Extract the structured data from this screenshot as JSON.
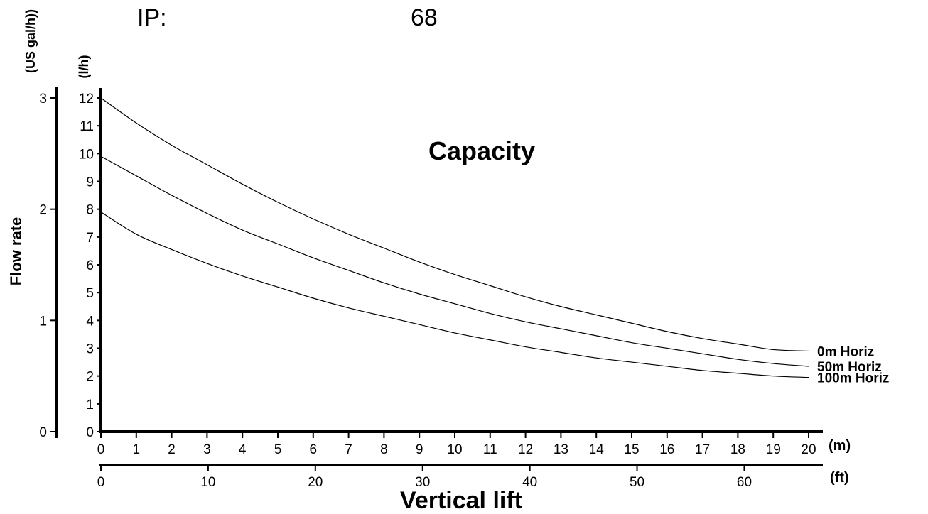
{
  "header": {
    "label": "IP:",
    "value": "68"
  },
  "chart_data": {
    "type": "line",
    "title": "Capacity",
    "xlabel": "Vertical lift",
    "ylabel": "Flow rate",
    "x_unit_primary": "(m)",
    "x_unit_secondary": "(ft)",
    "y_unit_primary": "(l/h)",
    "y_unit_secondary": "(US gal/h))",
    "xlim": [
      0,
      20
    ],
    "ylim": [
      0,
      12
    ],
    "ylim_secondary": [
      0,
      3
    ],
    "xlim_secondary": [
      0,
      66
    ],
    "x_ticks": [
      "0",
      "1",
      "2",
      "3",
      "4",
      "5",
      "6",
      "7",
      "8",
      "9",
      "10",
      "11",
      "12",
      "13",
      "14",
      "15",
      "16",
      "17",
      "18",
      "19",
      "20"
    ],
    "x_ticks_secondary": [
      "0",
      "10",
      "20",
      "30",
      "40",
      "50",
      "60"
    ],
    "y_ticks": [
      "0",
      "1",
      "2",
      "3",
      "4",
      "5",
      "6",
      "7",
      "8",
      "9",
      "10",
      "11",
      "12"
    ],
    "y_ticks_secondary": [
      "0",
      "1",
      "2",
      "3"
    ],
    "series": [
      {
        "name": "0m Horiz",
        "x": [
          0,
          1,
          2,
          3,
          4,
          5,
          6,
          7,
          8,
          9,
          10,
          11,
          12,
          13,
          14,
          15,
          16,
          17,
          18,
          19,
          20
        ],
        "values": [
          12.0,
          11.1,
          10.3,
          9.6,
          8.9,
          8.25,
          7.65,
          7.1,
          6.6,
          6.1,
          5.65,
          5.25,
          4.85,
          4.5,
          4.2,
          3.9,
          3.6,
          3.35,
          3.15,
          2.95,
          2.9
        ]
      },
      {
        "name": "50m Horiz",
        "x": [
          0,
          1,
          2,
          3,
          4,
          5,
          6,
          7,
          8,
          9,
          10,
          11,
          12,
          13,
          14,
          15,
          16,
          17,
          18,
          19,
          20
        ],
        "values": [
          9.9,
          9.2,
          8.5,
          7.85,
          7.25,
          6.75,
          6.25,
          5.8,
          5.35,
          4.95,
          4.6,
          4.25,
          3.95,
          3.7,
          3.45,
          3.2,
          3.0,
          2.8,
          2.6,
          2.45,
          2.35
        ]
      },
      {
        "name": "100m Horiz",
        "x": [
          0,
          1,
          2,
          3,
          4,
          5,
          6,
          7,
          8,
          9,
          10,
          11,
          12,
          13,
          14,
          15,
          16,
          17,
          18,
          19,
          20
        ],
        "values": [
          7.9,
          7.1,
          6.55,
          6.05,
          5.6,
          5.2,
          4.8,
          4.45,
          4.15,
          3.85,
          3.55,
          3.3,
          3.05,
          2.85,
          2.65,
          2.5,
          2.35,
          2.2,
          2.1,
          2.0,
          1.95
        ]
      }
    ],
    "grid": false,
    "legend": "inline-right"
  }
}
